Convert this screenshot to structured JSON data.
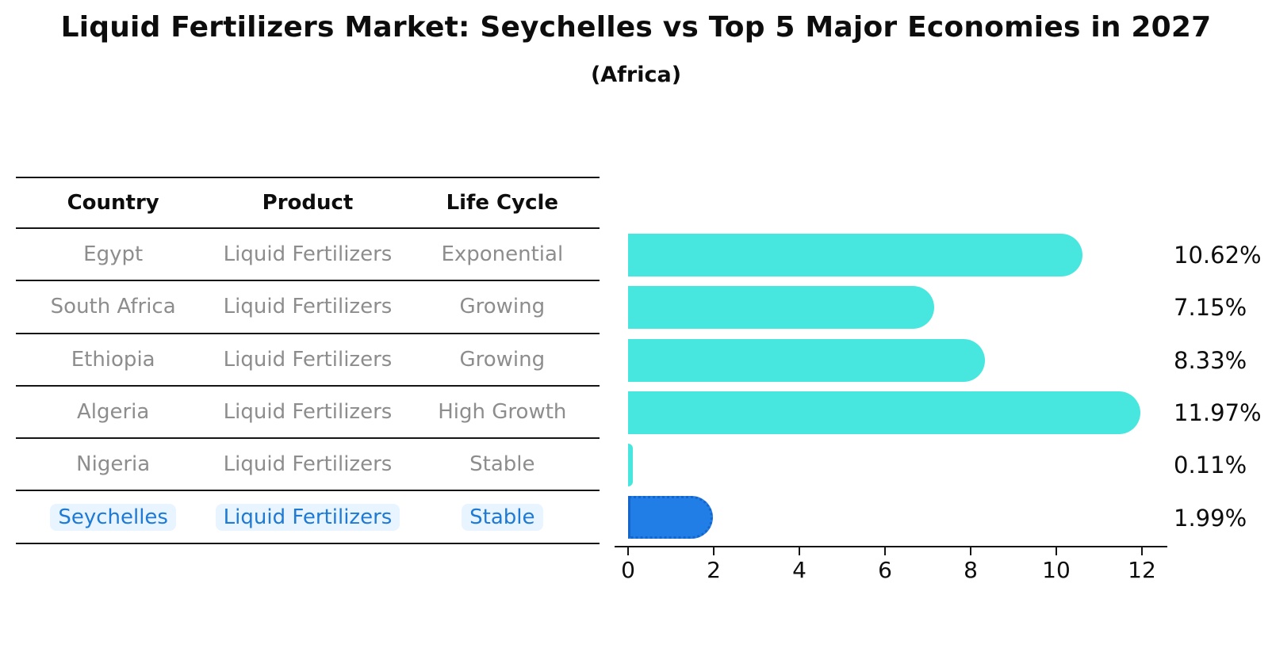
{
  "header": {
    "title": "Liquid Fertilizers Market: Seychelles vs Top 5 Major Economies in 2027",
    "subtitle": "(Africa)"
  },
  "table": {
    "columns": [
      "Country",
      "Product",
      "Life Cycle"
    ],
    "rows": [
      {
        "country": "Egypt",
        "product": "Liquid Fertilizers",
        "life_cycle": "Exponential",
        "highlight": false
      },
      {
        "country": "South Africa",
        "product": "Liquid Fertilizers",
        "life_cycle": "Growing",
        "highlight": false
      },
      {
        "country": "Ethiopia",
        "product": "Liquid Fertilizers",
        "life_cycle": "Growing",
        "highlight": false
      },
      {
        "country": "Algeria",
        "product": "Liquid Fertilizers",
        "life_cycle": "High Growth",
        "highlight": false
      },
      {
        "country": "Nigeria",
        "product": "Liquid Fertilizers",
        "life_cycle": "Stable",
        "highlight": false
      },
      {
        "country": "Seychelles",
        "product": "Liquid Fertilizers",
        "life_cycle": "Stable",
        "highlight": true
      }
    ]
  },
  "chart_data": {
    "type": "bar",
    "orientation": "horizontal",
    "title": "Liquid Fertilizers Market: Seychelles vs Top 5 Major Economies in 2027 (Africa)",
    "categories": [
      "Egypt",
      "South Africa",
      "Ethiopia",
      "Algeria",
      "Nigeria",
      "Seychelles"
    ],
    "values": [
      10.62,
      7.15,
      8.33,
      11.97,
      0.11,
      1.99
    ],
    "value_labels": [
      "10.62%",
      "7.15%",
      "8.33%",
      "11.97%",
      "0.11%",
      "1.99%"
    ],
    "unit": "%",
    "x_ticks": [
      0,
      2,
      4,
      6,
      8,
      10,
      12
    ],
    "xlim": [
      0,
      12.6
    ],
    "grid": false,
    "legend": false,
    "highlight_index": 5,
    "bar_color": "#47e6df",
    "highlight_color": "#217ee6",
    "highlight_border_color": "#1565cb"
  },
  "colors": {
    "accent_text": "#1e7ad3",
    "muted_text": "#8d8d8d",
    "highlight_text_bg": "rgba(150,205,255,0.22)",
    "axis_color": "#151515"
  }
}
